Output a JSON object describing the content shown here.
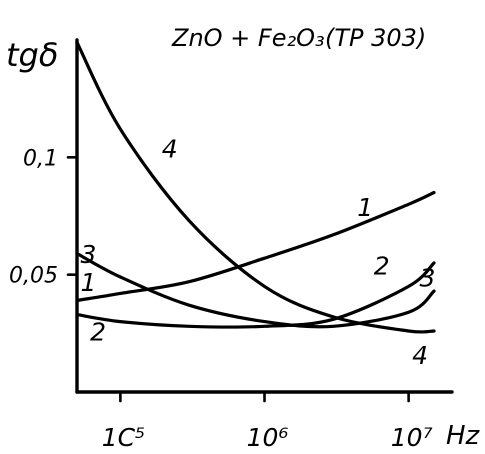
{
  "chart_data": {
    "type": "line",
    "title": "ZnO + Fe₂O₃",
    "subtitle": "(TP 303)",
    "ylabel": "tgδ",
    "xunit": "Hz",
    "xscale": "log",
    "xlim": [
      50000,
      20000000
    ],
    "ylim": [
      0,
      0.15
    ],
    "grid": false,
    "x_ticks": [
      {
        "value": 100000,
        "label": "1C⁵"
      },
      {
        "value": 1000000,
        "label": "10⁶"
      },
      {
        "value": 10000000,
        "label": "10⁷"
      }
    ],
    "y_ticks": [
      {
        "value": 0.1,
        "label": "0,1"
      },
      {
        "value": 0.05,
        "label": "0,05"
      }
    ],
    "series": [
      {
        "name": "1",
        "x": [
          50000,
          100000,
          300000,
          1000000,
          3000000,
          10000000,
          15000000
        ],
        "y": [
          0.039,
          0.042,
          0.047,
          0.057,
          0.067,
          0.08,
          0.085
        ]
      },
      {
        "name": "2",
        "x": [
          50000,
          100000,
          300000,
          1000000,
          3000000,
          10000000,
          15000000
        ],
        "y": [
          0.033,
          0.03,
          0.028,
          0.028,
          0.031,
          0.045,
          0.055
        ]
      },
      {
        "name": "3",
        "x": [
          50000,
          100000,
          300000,
          1000000,
          3000000,
          10000000,
          15000000
        ],
        "y": [
          0.059,
          0.049,
          0.037,
          0.03,
          0.028,
          0.034,
          0.043
        ]
      },
      {
        "name": "4",
        "x": [
          50000,
          100000,
          300000,
          1000000,
          3000000,
          10000000,
          15000000
        ],
        "y": [
          0.149,
          0.112,
          0.073,
          0.045,
          0.032,
          0.026,
          0.026
        ]
      }
    ],
    "curve_labels": [
      {
        "series": "1",
        "text": "1",
        "x": 5000000,
        "y": 0.075
      },
      {
        "series": "1",
        "text": "1",
        "x": 60000,
        "y": 0.043
      },
      {
        "series": "2",
        "text": "2",
        "x": 6500000,
        "y": 0.05
      },
      {
        "series": "2",
        "text": "2",
        "x": 70000,
        "y": 0.022
      },
      {
        "series": "3",
        "text": "3",
        "x": 60000,
        "y": 0.055
      },
      {
        "series": "3",
        "text": "3",
        "x": 13500000,
        "y": 0.045
      },
      {
        "series": "4",
        "text": "4",
        "x": 220000,
        "y": 0.1
      },
      {
        "series": "4",
        "text": "4",
        "x": 12000000,
        "y": 0.012
      }
    ]
  }
}
